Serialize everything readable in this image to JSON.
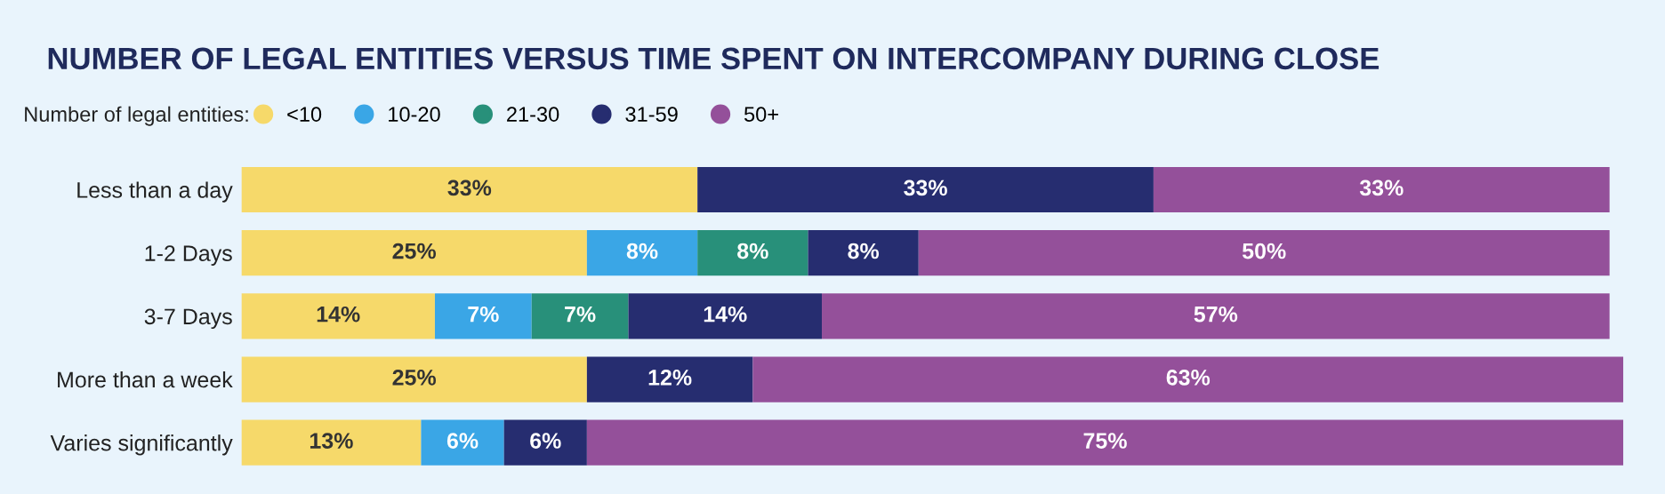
{
  "chart_data": {
    "type": "bar",
    "orientation": "horizontal",
    "stacked": true,
    "title": "NUMBER OF LEGAL ENTITIES VERSUS TIME SPENT ON INTERCOMPANY DURING CLOSE",
    "legend_title": "Number of legal entities:",
    "legend": "top left",
    "categories": [
      "Less than a day",
      "1-2 Days",
      "3-7 Days",
      "More than a week",
      "Varies significantly"
    ],
    "xlim": [
      0,
      100
    ],
    "tick_labels": "y",
    "grid": false,
    "series": [
      {
        "name": "<10",
        "color": "#f6d96a",
        "values": [
          33,
          25,
          14,
          25,
          13
        ],
        "value_labels": [
          "33%",
          "25%",
          "14%",
          "25%",
          "13%"
        ]
      },
      {
        "name": "10-20",
        "color": "#3aa6e6",
        "values": [
          null,
          8,
          7,
          null,
          6
        ],
        "value_labels": [
          null,
          "8%",
          "7%",
          null,
          "6%"
        ]
      },
      {
        "name": "21-30",
        "color": "#28907a",
        "values": [
          null,
          8,
          7,
          null,
          null
        ],
        "value_labels": [
          null,
          "8%",
          "7%",
          null,
          null
        ]
      },
      {
        "name": "31-59",
        "color": "#262d70",
        "values": [
          33,
          8,
          14,
          12,
          6
        ],
        "value_labels": [
          "33%",
          "8%",
          "14%",
          "12%",
          "6%"
        ]
      },
      {
        "name": "50+",
        "color": "#94509a",
        "values": [
          33,
          50,
          57,
          63,
          75
        ],
        "value_labels": [
          "33%",
          "50%",
          "57%",
          "63%",
          "75%"
        ]
      }
    ]
  }
}
